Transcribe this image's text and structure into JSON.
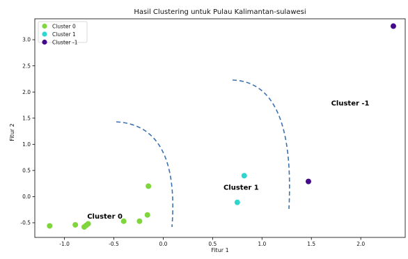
{
  "chart_data": {
    "type": "scatter",
    "title": "Hasil Clustering untuk Pulau Kalimantan-sulawesi",
    "xlabel": "Fitur 1",
    "ylabel": "Fitur 2",
    "xlim": [
      -1.3,
      2.45
    ],
    "ylim": [
      -0.78,
      3.4
    ],
    "xticks": [
      -1.0,
      -0.5,
      0.0,
      0.5,
      1.0,
      1.5,
      2.0
    ],
    "xtick_labels": [
      "-1.0",
      "-0.5",
      "0.0",
      "0.5",
      "1.0",
      "1.5",
      "2.0"
    ],
    "yticks": [
      -0.5,
      0.0,
      0.5,
      1.0,
      1.5,
      2.0,
      2.5,
      3.0
    ],
    "ytick_labels": [
      "-0.5",
      "0.0",
      "0.5",
      "1.0",
      "1.5",
      "2.0",
      "2.5",
      "3.0"
    ],
    "grid": false,
    "legend_position": "top-left",
    "series": [
      {
        "name": "Cluster 0",
        "color": "#7fd63c",
        "points": [
          {
            "x": -1.15,
            "y": -0.56
          },
          {
            "x": -0.89,
            "y": -0.54
          },
          {
            "x": -0.8,
            "y": -0.58
          },
          {
            "x": -0.78,
            "y": -0.55
          },
          {
            "x": -0.76,
            "y": -0.52
          },
          {
            "x": -0.4,
            "y": -0.47
          },
          {
            "x": -0.24,
            "y": -0.47
          },
          {
            "x": -0.16,
            "y": -0.35
          },
          {
            "x": -0.15,
            "y": 0.2
          }
        ]
      },
      {
        "name": "Cluster 1",
        "color": "#2ed6d0",
        "points": [
          {
            "x": 0.82,
            "y": 0.4
          },
          {
            "x": 0.75,
            "y": -0.11
          }
        ]
      },
      {
        "name": "Cluster -1",
        "color": "#450a8c",
        "points": [
          {
            "x": 1.47,
            "y": 0.29
          },
          {
            "x": 2.33,
            "y": 3.26
          }
        ]
      }
    ],
    "annotations": [
      {
        "text": "Cluster 0",
        "x": -0.77,
        "y": -0.42
      },
      {
        "text": "Cluster 1",
        "x": 0.61,
        "y": 0.13
      },
      {
        "text": "Cluster -1",
        "x": 1.7,
        "y": 1.74
      }
    ],
    "boundary_color": "#3a72b0"
  }
}
